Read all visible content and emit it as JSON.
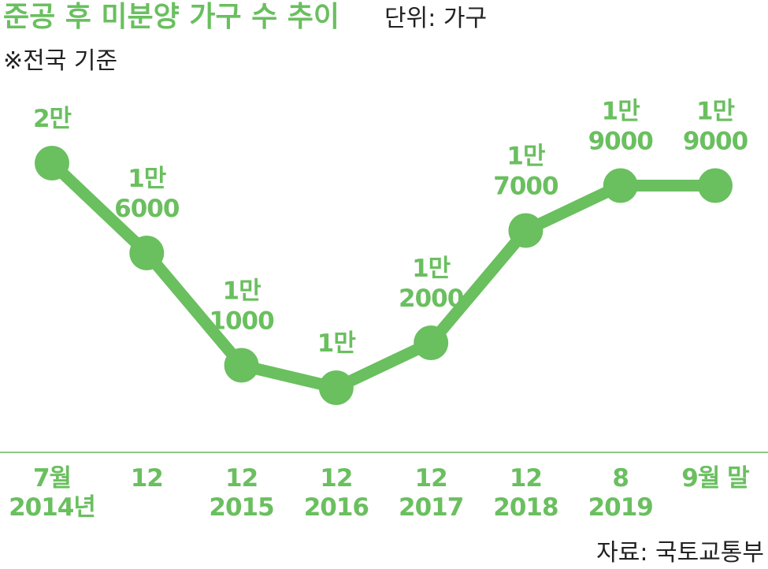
{
  "colors": {
    "accent": "#6abf5f",
    "text": "#222222",
    "axis": "#8cc985"
  },
  "header": {
    "title": "준공 후 미분양 가구 수 추이",
    "unit": "단위: 가구",
    "note": "※전국 기준"
  },
  "footer": {
    "source": "자료: 국토교통부"
  },
  "chart_data": {
    "type": "line",
    "title": "준공 후 미분양 가구 수 추이",
    "ylabel": "",
    "xlabel": "",
    "ylim": [
      5000,
      22000
    ],
    "grid": false,
    "categories": [
      [
        "7월",
        "2014년"
      ],
      [
        "12"
      ],
      [
        "12",
        "2015"
      ],
      [
        "12",
        "2016"
      ],
      [
        "12",
        "2017"
      ],
      [
        "12",
        "2018"
      ],
      [
        "8",
        "2019"
      ],
      [
        "9월 말"
      ]
    ],
    "values": [
      20000,
      16000,
      11000,
      10000,
      12000,
      17000,
      19000,
      19000
    ],
    "data_labels": [
      [
        "2만"
      ],
      [
        "1만",
        "6000"
      ],
      [
        "1만",
        "1000"
      ],
      [
        "1만"
      ],
      [
        "1만",
        "2000"
      ],
      [
        "1만",
        "7000"
      ],
      [
        "1만",
        "9000"
      ],
      [
        "1만",
        "9000"
      ]
    ]
  }
}
